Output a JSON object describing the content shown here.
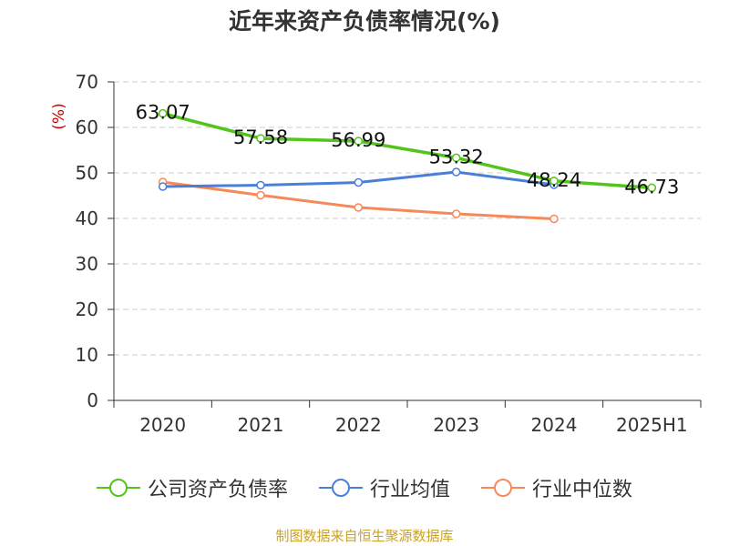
{
  "chart_data": {
    "type": "line",
    "title": "近年来资产负债率情况(%)",
    "unit_label": "(%)",
    "categories": [
      "2020",
      "2021",
      "2022",
      "2023",
      "2024",
      "2025H1"
    ],
    "ylim": [
      0,
      70
    ],
    "yticks": [
      "0",
      "10",
      "20",
      "30",
      "40",
      "50",
      "60",
      "70"
    ],
    "grid": true,
    "legend_position": "bottom",
    "series": [
      {
        "name": "公司资产负债率",
        "color": "#52c41a",
        "values": [
          63.07,
          57.58,
          56.99,
          53.32,
          48.24,
          46.73
        ],
        "labels": [
          "63.07",
          "57.58",
          "56.99",
          "53.32",
          "48.24",
          "46.73"
        ]
      },
      {
        "name": "行业均值",
        "color": "#4a7fd8",
        "values": [
          47.0,
          47.3,
          47.9,
          50.2,
          47.4,
          null
        ]
      },
      {
        "name": "行业中位数",
        "color": "#f5895a",
        "values": [
          48.0,
          45.1,
          42.4,
          41.0,
          39.9,
          null
        ]
      }
    ]
  },
  "footer": {
    "source": "制图数据来自恒生聚源数据库"
  }
}
